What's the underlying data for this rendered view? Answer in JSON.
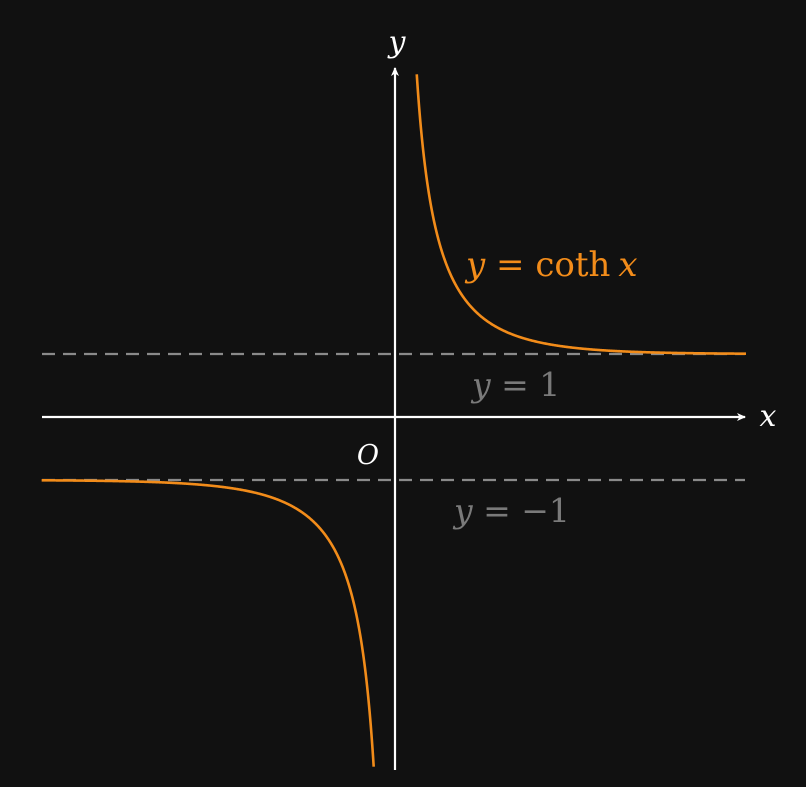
{
  "axes": {
    "x_label": "x",
    "y_label": "y",
    "origin_label": "O"
  },
  "curve": {
    "function": "coth",
    "color": "#f28c1a",
    "label_lhs": "y",
    "label_eq": " = ",
    "label_fn": "coth",
    "label_var": "x"
  },
  "asymptotes": [
    {
      "value": 1,
      "label_lhs": "y",
      "label_rhs": " = 1"
    },
    {
      "value": -1,
      "label_lhs": "y",
      "label_rhs": " = −1"
    }
  ],
  "colors": {
    "background": "#111111",
    "axis": "#ffffff",
    "asymptote": "#8a8a8a",
    "asymptote_label": "#7a7a7a"
  }
}
